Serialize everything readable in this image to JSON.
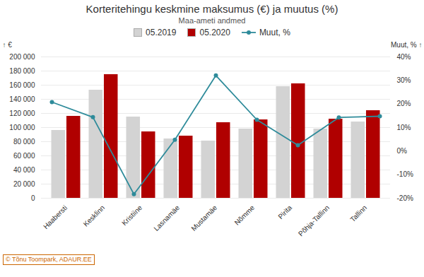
{
  "chart_data": {
    "type": "bar",
    "title": "Korteritehingu keskmine maksumus (€) ja muutus (%)",
    "subtitle": "Maa-ameti andmed",
    "ylabel": "€",
    "y2label": "Muut, %",
    "categories": [
      "Haabersti",
      "Kesklinn",
      "Kristiine",
      "Lasnamäe",
      "Mustamäe",
      "Nõmme",
      "Pirita",
      "Põhja-Tallinn",
      "Tallinn"
    ],
    "series": [
      {
        "name": "05.2019",
        "type": "bar",
        "color": "#d3d3d3",
        "values": [
          96000,
          153000,
          115000,
          84000,
          81000,
          98000,
          158000,
          98000,
          108000
        ]
      },
      {
        "name": "05.2020",
        "type": "bar",
        "color": "#b00000",
        "values": [
          116000,
          175000,
          94000,
          88000,
          107000,
          111000,
          162000,
          112000,
          124000
        ]
      },
      {
        "name": "Muut, %",
        "type": "line",
        "axis": "y2",
        "marker": "circle",
        "color": "#2e8b9a",
        "values": [
          20.8,
          14.4,
          -18.3,
          4.8,
          32.1,
          13.3,
          2.5,
          14.3,
          14.8
        ]
      }
    ],
    "ylim": [
      0,
      200000
    ],
    "yticks": [
      0,
      {
        "value": 20000,
        "label": "20 000"
      },
      {
        "value": 40000,
        "label": "40 000"
      },
      {
        "value": 60000,
        "label": "60 000"
      },
      {
        "value": 80000,
        "label": "80 000"
      },
      {
        "value": 100000,
        "label": "100 000"
      },
      {
        "value": 120000,
        "label": "120 000"
      },
      {
        "value": 140000,
        "label": "140 000"
      },
      {
        "value": 160000,
        "label": "160 000"
      },
      {
        "value": 180000,
        "label": "180 000"
      },
      {
        "value": 200000,
        "label": "200 000"
      }
    ],
    "y2lim": [
      -20,
      40
    ],
    "y2ticks": [
      {
        "value": -20,
        "label": "-20%"
      },
      {
        "value": -10,
        "label": "-10%"
      },
      {
        "value": 0,
        "label": "0%"
      },
      {
        "value": 10,
        "label": "10%"
      },
      {
        "value": 20,
        "label": "20%"
      },
      {
        "value": 30,
        "label": "30%"
      },
      {
        "value": 40,
        "label": "40%"
      }
    ],
    "grid": true,
    "legend": "top",
    "annotations": [
      "© Tõnu Toompark, ADAUR.EE"
    ]
  }
}
